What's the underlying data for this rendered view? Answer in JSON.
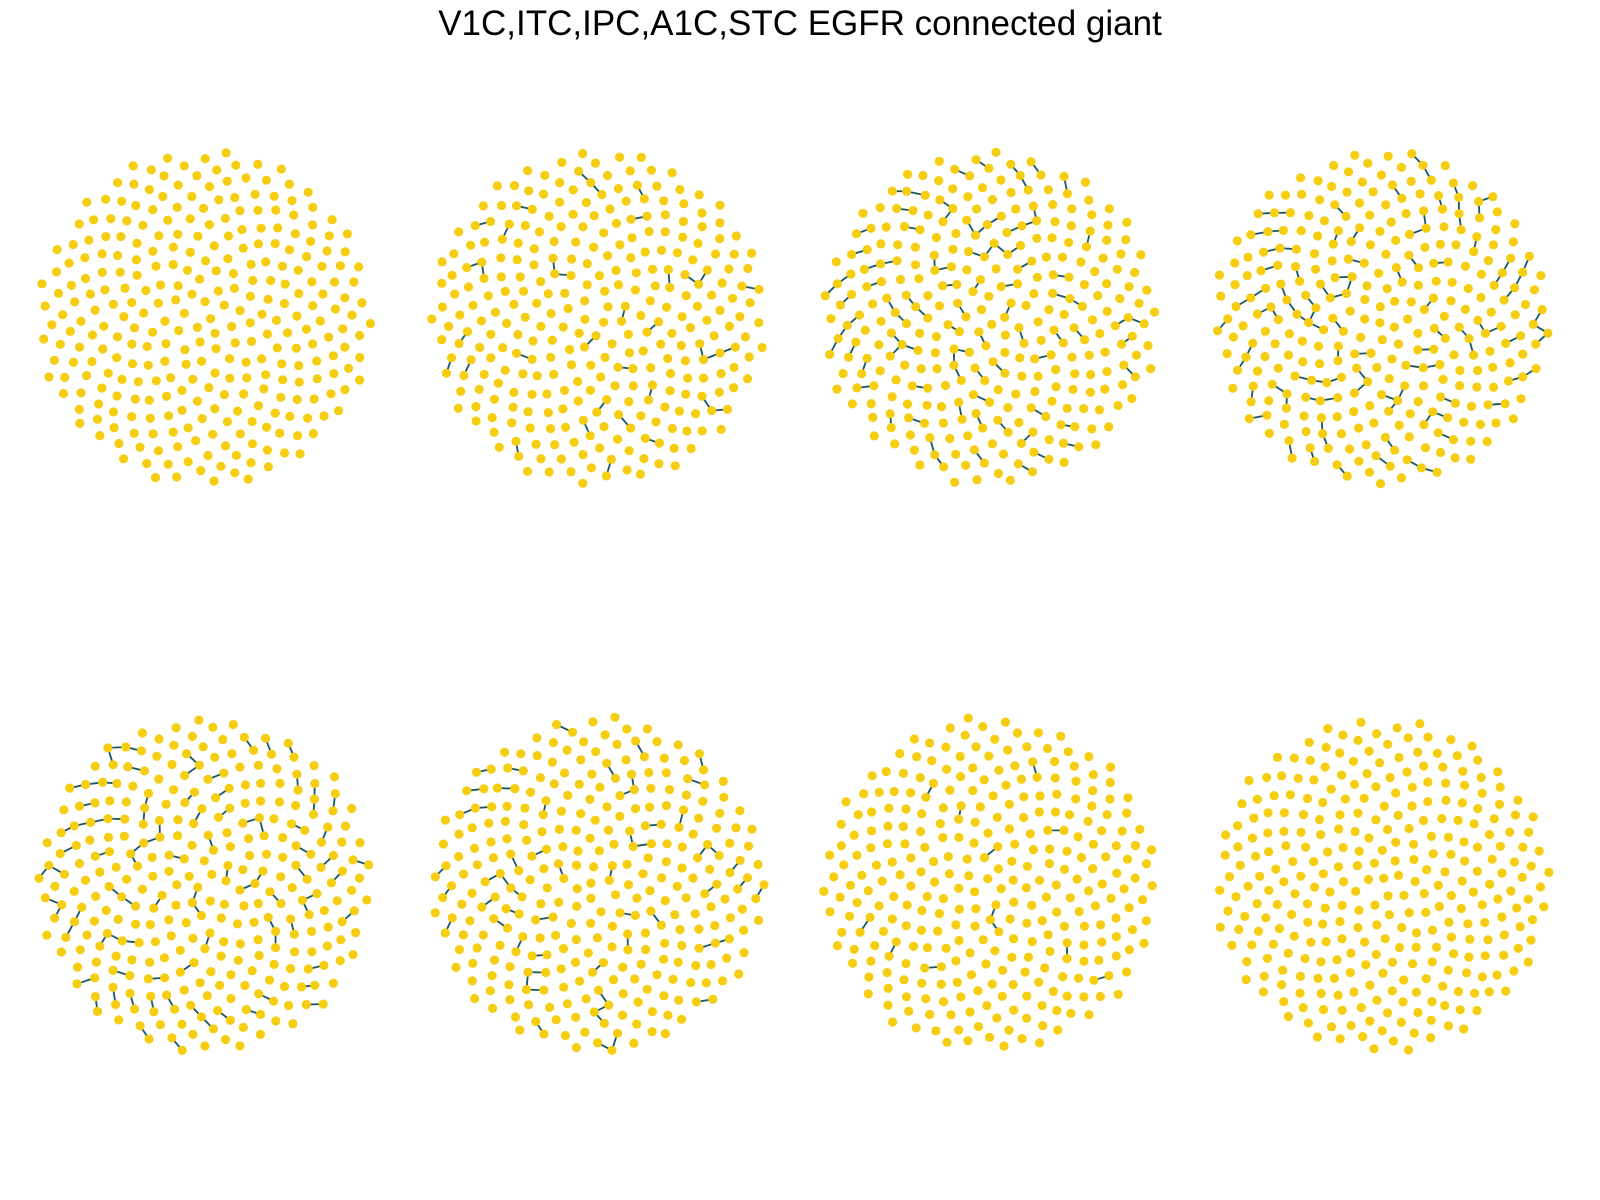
{
  "figure": {
    "title": "V1C,ITC,IPC,A1C,STC EGFR connected giant"
  },
  "style": {
    "node_color": "#F5CE12",
    "edge_color": "#1A5666",
    "background": "#FFFFFF"
  },
  "panel_count": 8,
  "panels": [
    {
      "index": 1,
      "density": 0.0
    },
    {
      "index": 2,
      "density": 0.35
    },
    {
      "index": 3,
      "density": 0.75
    },
    {
      "index": 4,
      "density": 0.9
    },
    {
      "index": 5,
      "density": 0.75
    },
    {
      "index": 6,
      "density": 0.5
    },
    {
      "index": 7,
      "density": 0.06
    },
    {
      "index": 8,
      "density": 0.0
    }
  ]
}
